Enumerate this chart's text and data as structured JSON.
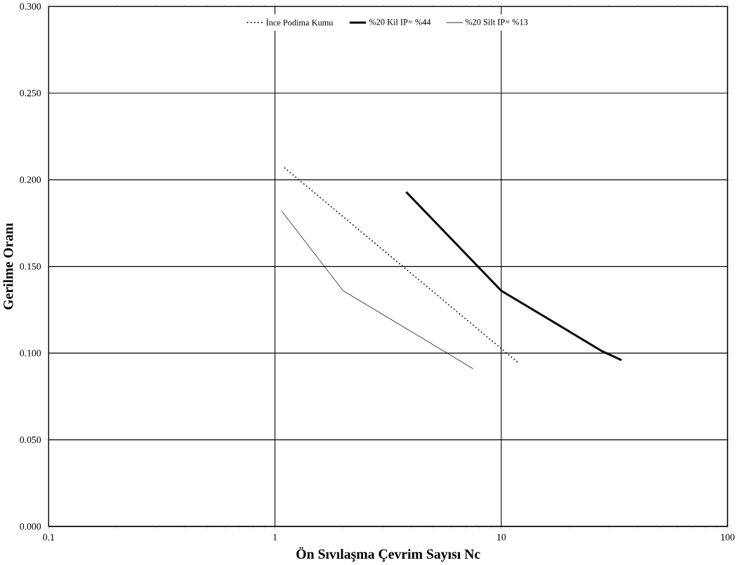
{
  "chart_data": {
    "type": "line",
    "log": "x",
    "grid": true,
    "legend": "top",
    "marker": "none",
    "xlabel": "Ön Sıvılaşma Çevrim Sayısı Nc",
    "ylabel": "Gerilme Oranı",
    "xlim": [
      0.1,
      100
    ],
    "xticks": [
      0.1,
      1,
      10,
      100
    ],
    "ylim": [
      0,
      0.3
    ],
    "yticks": [
      {
        "value": 0,
        "label": "0.000"
      },
      {
        "value": 0.05,
        "label": "0.050"
      },
      {
        "value": 0.1,
        "label": "0.100"
      },
      {
        "value": 0.15,
        "label": "0.150"
      },
      {
        "value": 0.2,
        "label": "0.200"
      },
      {
        "value": 0.25,
        "label": "0.250"
      },
      {
        "value": 0.3,
        "label": "0.300"
      }
    ],
    "series": [
      {
        "name": "İnce Podima Kumu",
        "color": "#000000",
        "line_style": "dotted",
        "x": [
          1.1,
          12
        ],
        "values": [
          0.207,
          0.094
        ]
      },
      {
        "name": "%20 Kil  IP= %44",
        "color": "#000000",
        "line_style": "solid",
        "x": [
          3.8,
          10,
          28,
          34
        ],
        "values": [
          0.193,
          0.136,
          0.101,
          0.096
        ]
      },
      {
        "name": "%20 Silt  IP= %13",
        "color": "#000000",
        "line_style": "solid",
        "x": [
          1.07,
          2.0,
          5.6,
          7.5
        ],
        "values": [
          0.182,
          0.136,
          0.101,
          0.091
        ]
      }
    ]
  }
}
